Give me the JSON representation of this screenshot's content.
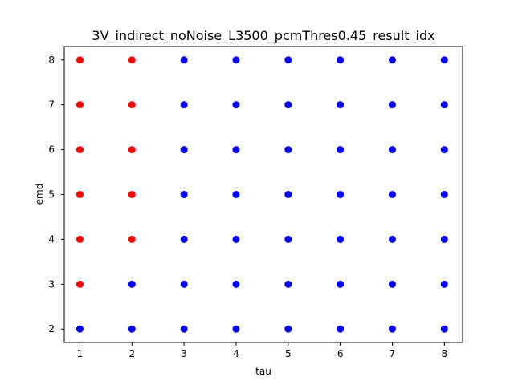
{
  "chart_data": {
    "type": "scatter",
    "title": "3V_indirect_noNoise_L3500_pcmThres0.45_result_idx",
    "xlabel": "tau",
    "ylabel": "emd",
    "xlim": [
      0.7,
      8.35
    ],
    "ylim": [
      1.7,
      8.3
    ],
    "xticks": [
      1,
      2,
      3,
      4,
      5,
      6,
      7,
      8
    ],
    "yticks": [
      2,
      3,
      4,
      5,
      6,
      7,
      8
    ],
    "grid": false,
    "colors": {
      "red": "#ff0000",
      "blue": "#0000ff"
    },
    "points": [
      {
        "x": 1,
        "y": 2,
        "color": "blue"
      },
      {
        "x": 1,
        "y": 3,
        "color": "red"
      },
      {
        "x": 1,
        "y": 4,
        "color": "red"
      },
      {
        "x": 1,
        "y": 5,
        "color": "red"
      },
      {
        "x": 1,
        "y": 6,
        "color": "red"
      },
      {
        "x": 1,
        "y": 7,
        "color": "red"
      },
      {
        "x": 1,
        "y": 8,
        "color": "red"
      },
      {
        "x": 2,
        "y": 2,
        "color": "blue"
      },
      {
        "x": 2,
        "y": 3,
        "color": "blue"
      },
      {
        "x": 2,
        "y": 4,
        "color": "red"
      },
      {
        "x": 2,
        "y": 5,
        "color": "red"
      },
      {
        "x": 2,
        "y": 6,
        "color": "red"
      },
      {
        "x": 2,
        "y": 7,
        "color": "red"
      },
      {
        "x": 2,
        "y": 8,
        "color": "red"
      },
      {
        "x": 3,
        "y": 2,
        "color": "blue"
      },
      {
        "x": 3,
        "y": 3,
        "color": "blue"
      },
      {
        "x": 3,
        "y": 4,
        "color": "blue"
      },
      {
        "x": 3,
        "y": 5,
        "color": "blue"
      },
      {
        "x": 3,
        "y": 6,
        "color": "blue"
      },
      {
        "x": 3,
        "y": 7,
        "color": "blue"
      },
      {
        "x": 3,
        "y": 8,
        "color": "blue"
      },
      {
        "x": 4,
        "y": 2,
        "color": "blue"
      },
      {
        "x": 4,
        "y": 3,
        "color": "blue"
      },
      {
        "x": 4,
        "y": 4,
        "color": "blue"
      },
      {
        "x": 4,
        "y": 5,
        "color": "blue"
      },
      {
        "x": 4,
        "y": 6,
        "color": "blue"
      },
      {
        "x": 4,
        "y": 7,
        "color": "blue"
      },
      {
        "x": 4,
        "y": 8,
        "color": "blue"
      },
      {
        "x": 5,
        "y": 2,
        "color": "blue"
      },
      {
        "x": 5,
        "y": 3,
        "color": "blue"
      },
      {
        "x": 5,
        "y": 4,
        "color": "blue"
      },
      {
        "x": 5,
        "y": 5,
        "color": "blue"
      },
      {
        "x": 5,
        "y": 6,
        "color": "blue"
      },
      {
        "x": 5,
        "y": 7,
        "color": "blue"
      },
      {
        "x": 5,
        "y": 8,
        "color": "blue"
      },
      {
        "x": 6,
        "y": 2,
        "color": "blue"
      },
      {
        "x": 6,
        "y": 3,
        "color": "blue"
      },
      {
        "x": 6,
        "y": 4,
        "color": "blue"
      },
      {
        "x": 6,
        "y": 5,
        "color": "blue"
      },
      {
        "x": 6,
        "y": 6,
        "color": "blue"
      },
      {
        "x": 6,
        "y": 7,
        "color": "blue"
      },
      {
        "x": 6,
        "y": 8,
        "color": "blue"
      },
      {
        "x": 7,
        "y": 2,
        "color": "blue"
      },
      {
        "x": 7,
        "y": 3,
        "color": "blue"
      },
      {
        "x": 7,
        "y": 4,
        "color": "blue"
      },
      {
        "x": 7,
        "y": 5,
        "color": "blue"
      },
      {
        "x": 7,
        "y": 6,
        "color": "blue"
      },
      {
        "x": 7,
        "y": 7,
        "color": "blue"
      },
      {
        "x": 7,
        "y": 8,
        "color": "blue"
      },
      {
        "x": 8,
        "y": 2,
        "color": "blue"
      },
      {
        "x": 8,
        "y": 3,
        "color": "blue"
      },
      {
        "x": 8,
        "y": 4,
        "color": "blue"
      },
      {
        "x": 8,
        "y": 5,
        "color": "blue"
      },
      {
        "x": 8,
        "y": 6,
        "color": "blue"
      },
      {
        "x": 8,
        "y": 7,
        "color": "blue"
      },
      {
        "x": 8,
        "y": 8,
        "color": "blue"
      }
    ]
  }
}
